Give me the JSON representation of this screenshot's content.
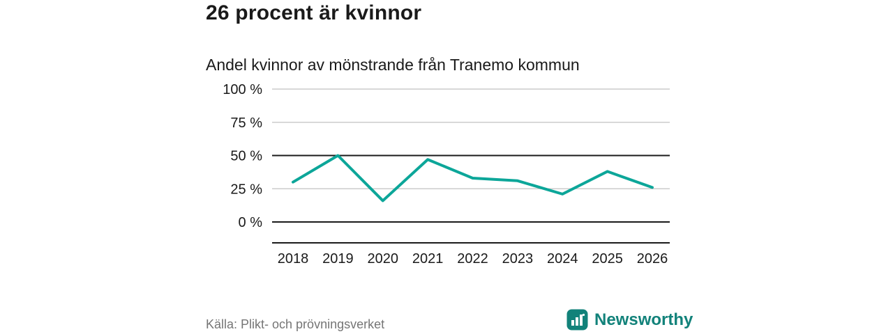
{
  "header": {
    "title": "26 procent är kvinnor"
  },
  "chart_data": {
    "type": "line",
    "title": "Andel kvinnor av mönstrande från Tranemo kommun",
    "categories": [
      "2018",
      "2019",
      "2020",
      "2021",
      "2022",
      "2023",
      "2024",
      "2025",
      "2026"
    ],
    "values": [
      30,
      50,
      16,
      47,
      33,
      31,
      21,
      38,
      26
    ],
    "xlabel": "",
    "ylabel": "",
    "ylim": [
      0,
      100
    ],
    "yticks": [
      0,
      25,
      50,
      75,
      100
    ],
    "ytick_suffix": " %",
    "dark_gridlines": [
      0,
      50
    ],
    "grid": true,
    "legend": "none",
    "line_color": "#0ca699",
    "grid_color": "#cccccc",
    "axis_color": "#1a1a1a"
  },
  "footer": {
    "source": "Källa: Plikt- och prövningsverket",
    "brand": "Newsworthy",
    "brand_color": "#12827a"
  }
}
